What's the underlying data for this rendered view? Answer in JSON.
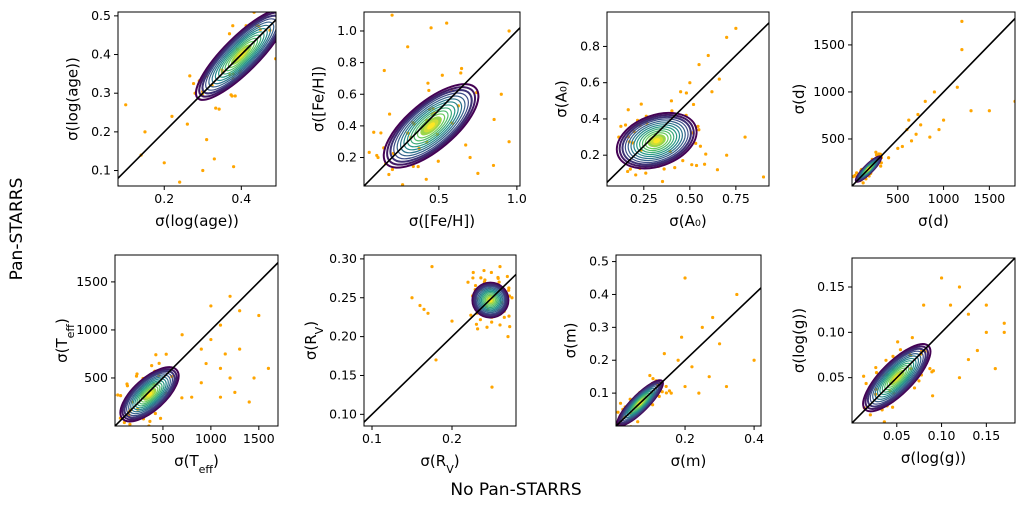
{
  "figure": {
    "ylabel": "Pan-STARRS",
    "xlabel": "No Pan-STARRS"
  },
  "colors": {
    "scatter": "#ffa500",
    "contour_outer": "#440154",
    "contour_mid": "#21918c",
    "contour_inner": "#fde725",
    "identity_line": "#000000"
  },
  "chart_data": [
    {
      "type": "scatter",
      "xlabel": "σ(log(age))",
      "ylabel": "σ(log(age))",
      "xlim": [
        0.08,
        0.49
      ],
      "ylim": [
        0.06,
        0.51
      ],
      "xticks": [
        0.2,
        0.4
      ],
      "xticklabels": [
        "0.2",
        "0.4"
      ],
      "yticks": [
        0.1,
        0.2,
        0.3,
        0.4,
        0.5
      ],
      "yticklabels": [
        "0.1",
        "0.2",
        "0.3",
        "0.4",
        "0.5"
      ],
      "density": {
        "center": [
          0.4,
          0.4
        ],
        "span": [
          0.32,
          0.09
        ],
        "angle": 45
      },
      "outliers": [
        [
          0.1,
          0.27
        ],
        [
          0.15,
          0.2
        ],
        [
          0.2,
          0.12
        ],
        [
          0.24,
          0.07
        ],
        [
          0.3,
          0.1
        ],
        [
          0.38,
          0.11
        ],
        [
          0.35,
          0.36
        ],
        [
          0.14,
          0.14
        ],
        [
          0.33,
          0.13
        ],
        [
          0.26,
          0.22
        ],
        [
          0.28,
          0.3
        ],
        [
          0.22,
          0.24
        ],
        [
          0.31,
          0.18
        ]
      ]
    },
    {
      "type": "scatter",
      "xlabel": "σ([Fe/H])",
      "ylabel": "σ([Fe/H])",
      "xlim": [
        0.02,
        1.02
      ],
      "ylim": [
        0.02,
        1.12
      ],
      "xticks": [
        0.5,
        1.0
      ],
      "xticklabels": [
        "0.5",
        "1.0"
      ],
      "yticks": [
        0.2,
        0.4,
        0.6,
        0.8,
        1.0
      ],
      "yticklabels": [
        "0.2",
        "0.4",
        "0.6",
        "0.8",
        "1.0"
      ],
      "density": {
        "center": [
          0.45,
          0.4
        ],
        "span": [
          0.75,
          0.3
        ],
        "angle": 40
      },
      "outliers": [
        [
          0.2,
          1.1
        ],
        [
          0.55,
          1.05
        ],
        [
          0.95,
          1.0
        ],
        [
          0.3,
          0.9
        ],
        [
          0.9,
          0.6
        ],
        [
          0.7,
          0.2
        ],
        [
          0.75,
          0.1
        ],
        [
          0.45,
          1.02
        ],
        [
          0.95,
          0.3
        ],
        [
          0.85,
          0.15
        ],
        [
          0.15,
          0.75
        ]
      ]
    },
    {
      "type": "scatter",
      "xlabel": "σ(A₀)",
      "ylabel": "σ(A₀)",
      "xlim": [
        0.05,
        0.93
      ],
      "ylim": [
        0.03,
        0.99
      ],
      "xticks": [
        0.25,
        0.5,
        0.75
      ],
      "xticklabels": [
        "0.25",
        "0.50",
        "0.75"
      ],
      "yticks": [
        0.2,
        0.4,
        0.6,
        0.8
      ],
      "yticklabels": [
        "0.2",
        "0.4",
        "0.6",
        "0.8"
      ],
      "density": {
        "center": [
          0.32,
          0.28
        ],
        "span": [
          0.45,
          0.28
        ],
        "angle": 20
      },
      "outliers": [
        [
          0.5,
          0.6
        ],
        [
          0.55,
          0.7
        ],
        [
          0.6,
          0.75
        ],
        [
          0.7,
          0.85
        ],
        [
          0.75,
          0.9
        ],
        [
          0.58,
          0.15
        ],
        [
          0.65,
          0.12
        ],
        [
          0.7,
          0.2
        ],
        [
          0.4,
          0.5
        ],
        [
          0.45,
          0.55
        ],
        [
          0.52,
          0.48
        ],
        [
          0.8,
          0.3
        ],
        [
          0.9,
          0.08
        ],
        [
          0.62,
          0.55
        ],
        [
          0.48,
          0.42
        ],
        [
          0.66,
          0.62
        ]
      ]
    },
    {
      "type": "scatter",
      "xlabel": "σ(d)",
      "ylabel": "σ(d)",
      "xlim": [
        0,
        1780
      ],
      "ylim": [
        0,
        1850
      ],
      "xticks": [
        500,
        1000,
        1500
      ],
      "xticklabels": [
        "500",
        "1000",
        "1500"
      ],
      "yticks": [
        500,
        1000,
        1500
      ],
      "yticklabels": [
        "500",
        "1000",
        "1500"
      ],
      "density": {
        "center": [
          180,
          180
        ],
        "span": [
          380,
          90
        ],
        "angle": 45
      },
      "outliers": [
        [
          500,
          400
        ],
        [
          600,
          600
        ],
        [
          700,
          550
        ],
        [
          800,
          900
        ],
        [
          900,
          1000
        ],
        [
          1000,
          700
        ],
        [
          1200,
          1450
        ],
        [
          1300,
          800
        ],
        [
          1500,
          800
        ],
        [
          400,
          300
        ],
        [
          650,
          480
        ],
        [
          750,
          650
        ],
        [
          550,
          420
        ],
        [
          850,
          520
        ],
        [
          950,
          600
        ],
        [
          620,
          700
        ],
        [
          720,
          760
        ],
        [
          1150,
          1050
        ],
        [
          1200,
          1750
        ],
        [
          1780,
          900
        ]
      ]
    },
    {
      "type": "scatter",
      "xlabel": "σ(T_eff)",
      "ylabel": "σ(T_eff)",
      "xlim": [
        0,
        1700
      ],
      "ylim": [
        0,
        1780
      ],
      "xticks": [
        500,
        1000,
        1500
      ],
      "xticklabels": [
        "500",
        "1000",
        "1500"
      ],
      "yticks": [
        500,
        1000,
        1500
      ],
      "yticklabels": [
        "500",
        "1000",
        "1500"
      ],
      "density": {
        "center": [
          360,
          330
        ],
        "span": [
          760,
          330
        ],
        "angle": 42
      },
      "outliers": [
        [
          900,
          800
        ],
        [
          1000,
          900
        ],
        [
          1100,
          600
        ],
        [
          1200,
          500
        ],
        [
          1300,
          1200
        ],
        [
          1500,
          1150
        ],
        [
          1600,
          600
        ],
        [
          800,
          300
        ],
        [
          1100,
          300
        ],
        [
          1250,
          350
        ],
        [
          900,
          450
        ],
        [
          1400,
          250
        ],
        [
          1000,
          1250
        ],
        [
          1100,
          1050
        ],
        [
          1300,
          800
        ],
        [
          700,
          950
        ],
        [
          1200,
          1350
        ],
        [
          1450,
          500
        ],
        [
          950,
          650
        ],
        [
          1150,
          750
        ]
      ]
    },
    {
      "type": "scatter",
      "xlabel": "σ(R_V)",
      "ylabel": "σ(R_V)",
      "xlim": [
        0.09,
        0.28
      ],
      "ylim": [
        0.085,
        0.305
      ],
      "xticks": [
        0.1,
        0.2
      ],
      "xticklabels": [
        "0.1",
        "0.2"
      ],
      "yticks": [
        0.1,
        0.15,
        0.2,
        0.25,
        0.3
      ],
      "yticklabels": [
        "0.10",
        "0.15",
        "0.20",
        "0.25",
        "0.30"
      ],
      "density": {
        "center": [
          0.248,
          0.247
        ],
        "span": [
          0.045,
          0.045
        ],
        "angle": 0
      },
      "outliers": [
        [
          0.15,
          0.25
        ],
        [
          0.16,
          0.24
        ],
        [
          0.17,
          0.23
        ],
        [
          0.175,
          0.29
        ],
        [
          0.2,
          0.22
        ],
        [
          0.18,
          0.17
        ],
        [
          0.165,
          0.235
        ],
        [
          0.25,
          0.135
        ],
        [
          0.27,
          0.2
        ],
        [
          0.232,
          0.21
        ],
        [
          0.26,
          0.215
        ],
        [
          0.24,
          0.285
        ],
        [
          0.26,
          0.29
        ],
        [
          0.22,
          0.27
        ],
        [
          0.275,
          0.25
        ]
      ]
    },
    {
      "type": "scatter",
      "xlabel": "σ(m)",
      "ylabel": "σ(m)",
      "xlim": [
        0.0,
        0.42
      ],
      "ylim": [
        0.0,
        0.52
      ],
      "xticks": [
        0.2,
        0.4
      ],
      "xticklabels": [
        "0.2",
        "0.4"
      ],
      "yticks": [
        0.1,
        0.2,
        0.3,
        0.4,
        0.5
      ],
      "yticklabels": [
        "0.1",
        "0.2",
        "0.3",
        "0.4",
        "0.5"
      ],
      "density": {
        "center": [
          0.07,
          0.07
        ],
        "span": [
          0.18,
          0.05
        ],
        "angle": 45
      },
      "outliers": [
        [
          0.2,
          0.45
        ],
        [
          0.25,
          0.3
        ],
        [
          0.3,
          0.25
        ],
        [
          0.35,
          0.4
        ],
        [
          0.27,
          0.15
        ],
        [
          0.2,
          0.12
        ],
        [
          0.18,
          0.2
        ],
        [
          0.22,
          0.18
        ],
        [
          0.14,
          0.22
        ],
        [
          0.16,
          0.1
        ],
        [
          0.24,
          0.1
        ],
        [
          0.4,
          0.2
        ],
        [
          0.28,
          0.33
        ],
        [
          0.32,
          0.12
        ],
        [
          0.19,
          0.27
        ]
      ]
    },
    {
      "type": "scatter",
      "xlabel": "σ(log(g))",
      "ylabel": "σ(log(g))",
      "xlim": [
        0.0,
        0.182
      ],
      "ylim": [
        0.0,
        0.182
      ],
      "xticks": [
        0.05,
        0.1,
        0.15
      ],
      "xticklabels": [
        "0.05",
        "0.10",
        "0.15"
      ],
      "yticks": [
        0.05,
        0.1,
        0.15
      ],
      "yticklabels": [
        "0.05",
        "0.10",
        "0.15"
      ],
      "density": {
        "center": [
          0.05,
          0.05
        ],
        "span": [
          0.1,
          0.035
        ],
        "angle": 45
      },
      "outliers": [
        [
          0.12,
          0.15
        ],
        [
          0.13,
          0.12
        ],
        [
          0.15,
          0.1
        ],
        [
          0.17,
          0.1
        ],
        [
          0.1,
          0.16
        ],
        [
          0.11,
          0.13
        ],
        [
          0.14,
          0.08
        ],
        [
          0.16,
          0.06
        ],
        [
          0.09,
          0.03
        ],
        [
          0.12,
          0.05
        ],
        [
          0.15,
          0.13
        ],
        [
          0.17,
          0.11
        ],
        [
          0.08,
          0.13
        ],
        [
          0.13,
          0.07
        ]
      ]
    }
  ]
}
